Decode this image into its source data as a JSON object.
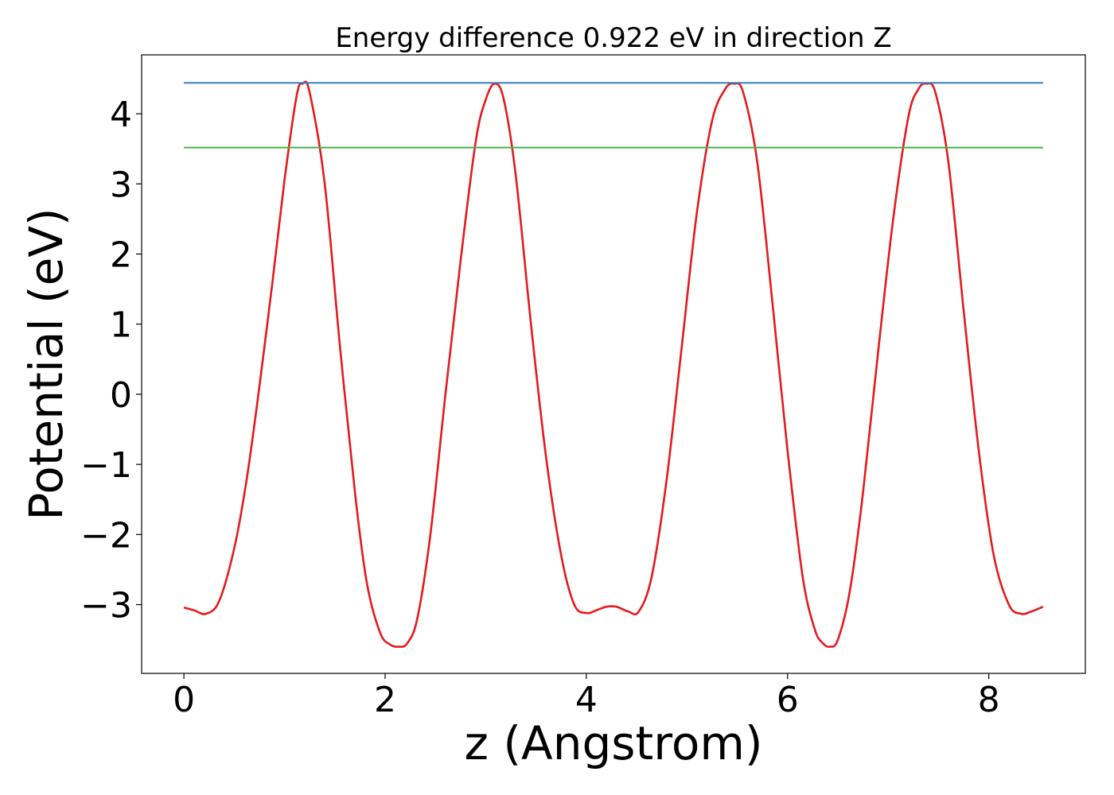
{
  "chart_data": {
    "type": "line",
    "title": "Energy difference 0.922 eV in direction Z",
    "xlabel": "z (Angstrom)",
    "ylabel": "Potential (eV)",
    "xlim": [
      -0.42,
      8.96
    ],
    "ylim": [
      -3.98,
      4.84
    ],
    "x_ticks": [
      0,
      2,
      4,
      6,
      8
    ],
    "x_tick_labels": [
      "0",
      "2",
      "4",
      "6",
      "8"
    ],
    "y_ticks": [
      -3,
      -2,
      -1,
      0,
      1,
      2,
      3,
      4
    ],
    "y_tick_labels": [
      "−3",
      "−2",
      "−1",
      "0",
      "1",
      "2",
      "3",
      "4"
    ],
    "grid": false,
    "legend": "none",
    "series": [
      {
        "kind": "curve",
        "color": "#e41a1c",
        "x": [
          0.0,
          0.1,
          0.22,
          0.35,
          0.5,
          0.62,
          0.75,
          0.88,
          1.0,
          1.12,
          1.18,
          1.25,
          1.4,
          1.55,
          1.7,
          1.82,
          1.95,
          2.05,
          2.14,
          2.22,
          2.32,
          2.45,
          2.6,
          2.75,
          2.9,
          3.0,
          3.09,
          3.18,
          3.3,
          3.45,
          3.6,
          3.75,
          3.88,
          4.0,
          4.1,
          4.2,
          4.3,
          4.42,
          4.52,
          4.65,
          4.8,
          4.95,
          5.1,
          5.25,
          5.38,
          5.47,
          5.56,
          5.7,
          5.85,
          6.0,
          6.15,
          6.27,
          6.35,
          6.42,
          6.5,
          6.62,
          6.75,
          6.9,
          7.05,
          7.2,
          7.3,
          7.38,
          7.47,
          7.6,
          7.75,
          7.9,
          8.05,
          8.2,
          8.32,
          8.42,
          8.54
        ],
        "y": [
          -3.04,
          -3.08,
          -3.13,
          -2.95,
          -2.2,
          -1.25,
          0.1,
          1.6,
          3.05,
          4.25,
          4.43,
          4.3,
          3.0,
          0.7,
          -1.4,
          -2.7,
          -3.4,
          -3.57,
          -3.6,
          -3.55,
          -3.2,
          -2.0,
          0.0,
          1.9,
          3.6,
          4.2,
          4.43,
          4.2,
          3.1,
          1.0,
          -0.9,
          -2.3,
          -3.0,
          -3.12,
          -3.08,
          -3.03,
          -3.03,
          -3.1,
          -3.1,
          -2.6,
          -1.2,
          0.7,
          2.6,
          3.9,
          4.35,
          4.43,
          4.3,
          3.3,
          1.3,
          -0.8,
          -2.6,
          -3.35,
          -3.55,
          -3.6,
          -3.5,
          -2.8,
          -1.4,
          0.6,
          2.5,
          3.95,
          4.35,
          4.43,
          4.3,
          3.3,
          1.2,
          -0.8,
          -2.3,
          -3.0,
          -3.13,
          -3.1,
          -3.03
        ]
      },
      {
        "kind": "level",
        "color": "#377eb8",
        "x": [
          0.0,
          8.54
        ],
        "y": [
          4.44,
          4.44
        ]
      },
      {
        "kind": "level",
        "color": "#4daf4a",
        "x": [
          0.0,
          8.54
        ],
        "y": [
          3.518,
          3.518
        ]
      }
    ]
  }
}
